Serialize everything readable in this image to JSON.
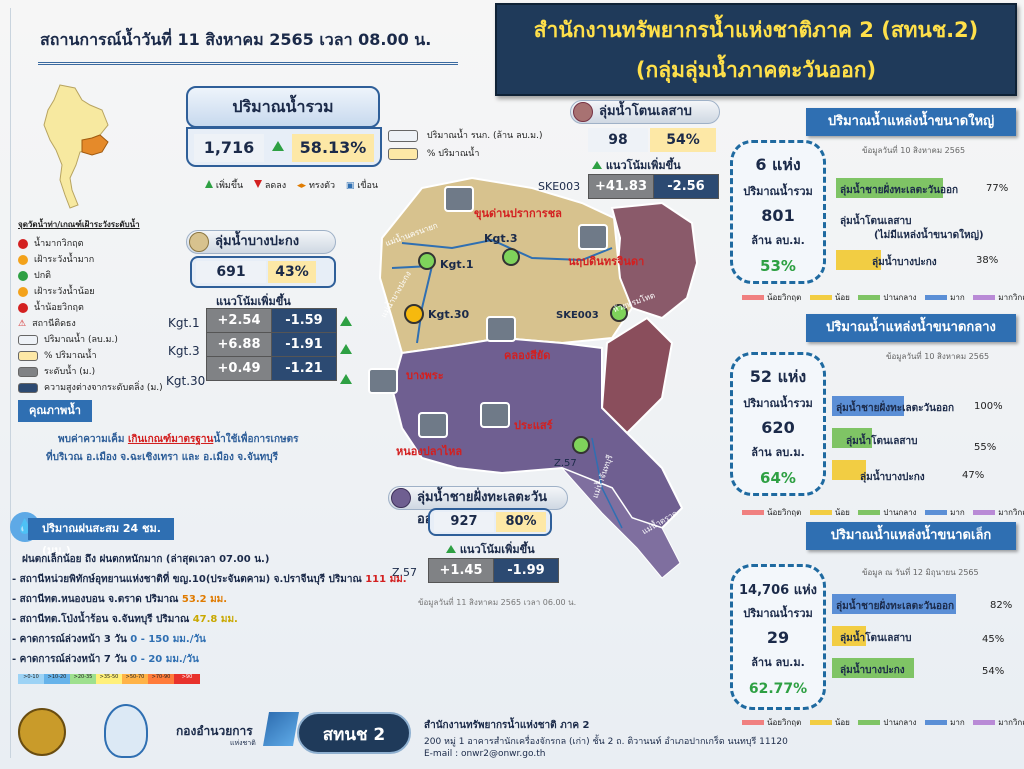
{
  "header": {
    "date_line": "สถานการณ์น้ำวันที่    11 สิงหาคม 2565   เวลา 08.00 น.",
    "title_line1": "สำนักงานทรัพยากรน้ำแห่งชาติภาค 2 (สทนช.2)",
    "title_line2": "(กลุ่มลุ่มน้ำภาคตะวันออก)"
  },
  "total": {
    "label": "ปริมาณน้ำรวม",
    "volume": "1,716",
    "percent": "58.13%",
    "legend_volume": "ปริมาณน้ำ รนก. (ล้าน ลบ.ม.)",
    "legend_percent": "% ปริมาณน้ำ",
    "trend_up": "เพิ่มขึ้น",
    "trend_down": "ลดลง",
    "trend_stable": "ทรงตัว",
    "dam": "เขื่อน"
  },
  "basin_tonlesap": {
    "name": "ลุ่มน้ำโตนเลสาบ",
    "volume": "98",
    "percent": "54%",
    "trend_label": "แนวโน้มเพิ่มขึ้น",
    "station": "SKE003",
    "value_left": "+41.83",
    "value_right": "-2.56"
  },
  "basin_bangpakong": {
    "name": "ลุ่มน้ำบางปะกง",
    "volume": "691",
    "percent": "43%",
    "trend_label": "แนวโน้มเพิ่มขึ้น",
    "rows": [
      {
        "station": "Kgt.1",
        "left": "+2.54",
        "right": "-1.59"
      },
      {
        "station": "Kgt.3",
        "left": "+6.88",
        "right": "-1.91"
      },
      {
        "station": "Kgt.30",
        "left": "+0.49",
        "right": "-1.21"
      }
    ]
  },
  "basin_coast": {
    "name": "ลุ่มน้ำชายฝั่งทะเลตะวันออก",
    "volume": "927",
    "percent": "80%",
    "trend_label": "แนวโน้มเพิ่มขึ้น",
    "station": "Z.57",
    "value_left": "+1.45",
    "value_right": "-1.99",
    "data_date": "ข้อมูลวันที่  11 สิงหาคม 2565 เวลา 06.00 น."
  },
  "map": {
    "labels": {
      "dam1": "ขุนด่านปราการชล",
      "dam2": "นฤบดินทรจินดา",
      "dam3": "คลองสียัด",
      "dam4": "บางพระ",
      "dam5": "หนองปลาไหล",
      "dam6": "ประแสร์",
      "kgt1": "Kgt.1",
      "kgt3": "Kgt.3",
      "kgt30": "Kgt.30",
      "ske003_a": "SKE003",
      "ske003_b": "SKE003",
      "z57": "Z.57",
      "river1": "แม่น้ำนครนายก",
      "river2": "แม่น้ำบางปะกง",
      "river3": "ห้วยพรมโหด",
      "river4": "แม่น้ำจันทบุรี",
      "river5": "แม่น้ำตราด"
    }
  },
  "left_legend": {
    "title": "จุดวัดน้ำท่า/เกณฑ์เฝ้าระวังระดับน้ำ",
    "items": [
      "น้ำมากวิกฤต",
      "เฝ้าระวังน้ำมาก",
      "ปกติ",
      "เฝ้าระวังน้ำน้อย",
      "น้ำน้อยวิกฤต",
      "สถานีติดธง",
      "ปริมาณน้ำ (ลบ.ม.)",
      "% ปริมาณน้ำ",
      "ระดับน้ำ (ม.)",
      "ความสูงต่างจากระดับตลิ่ง (ม.)"
    ],
    "colors": [
      "#d32020",
      "#f3a21b",
      "#2ea043",
      "#f3a21b",
      "#d32020"
    ]
  },
  "quality": {
    "head": "คุณภาพน้ำ",
    "line1_pre": "พบค่าความเค็ม ",
    "line1_red": "เกินเกณฑ์มาตรฐาน",
    "line1_post": "น้ำใช้เพื่อการเกษตร",
    "line2": "ที่บริเวณ อ.เมือง จ.ฉะเชิงเทรา และ อ.เมือง จ.จันทบุรี"
  },
  "rain": {
    "head": "ปริมาณฝนสะสม 24 ชม.(มม.)",
    "summary": "ฝนตกเล็กน้อย ถึง ฝนตกหนักมาก (ล่าสุดเวลา 07.00 น.)",
    "lines": [
      {
        "pre": "- สถานีหน่วยพิทักษ์อุทยานแห่งชาติที่ ขญ.10(ประจันตคาม) จ.ปราจีนบุรี ปริมาณ ",
        "val": "111 มม.",
        "color": "#d32020"
      },
      {
        "pre": "- สถานีทต.หนองบอน จ.ตราด ปริมาณ ",
        "val": "53.2 มม.",
        "color": "#e07b00"
      },
      {
        "pre": "- สถานีทต.โป่งน้ำร้อน จ.จันทบุรี ปริมาณ ",
        "val": "47.8 มม.",
        "color": "#c9a800"
      },
      {
        "pre": "- คาดการณ์ล่วงหน้า 3 วัน  ",
        "val": "0 - 150 มม./วัน",
        "color": "#2f5f99"
      },
      {
        "pre": "- คาดการณ์ล่วงหน้า 7 วัน  ",
        "val": "0 - 20 มม./วัน",
        "color": "#2f5f99"
      }
    ],
    "scale": [
      ">0-10",
      ">10-20",
      ">20-35",
      ">35-50",
      ">50-70",
      ">70-90",
      ">90"
    ],
    "scale_colors": [
      "#9dd3f5",
      "#66b3ea",
      "#9ee08e",
      "#fff07a",
      "#ffb347",
      "#ff7b3a",
      "#e8322c"
    ]
  },
  "large": {
    "head": "ปริมาณน้ำแหล่งน้ำขนาดใหญ่",
    "date": "ข้อมูลวันที่ 10 สิงหาคม 2565",
    "count": "6 แห่ง",
    "vol_label": "ปริมาณน้ำรวม",
    "vol": "801",
    "unit": "ล้าน ลบ.ม.",
    "pct": "53%",
    "bars": [
      {
        "label": "ลุ่มน้ำชายฝั่งทะเลตะวันออก",
        "pct": "77%",
        "fill": 0.77,
        "color": "#7fc465"
      },
      {
        "label": "ลุ่มน้ำโตนเลสาบ",
        "note": "(ไม่มีแหล่งน้ำขนาดใหญ่)",
        "pct": "",
        "fill": 0,
        "color": "#7fc465"
      },
      {
        "label": "ลุ่มน้ำบางปะกง",
        "pct": "38%",
        "fill": 0.38,
        "color": "#f2cd43"
      }
    ]
  },
  "medium": {
    "head": "ปริมาณน้ำแหล่งน้ำขนาดกลาง",
    "date": "ข้อมูลวันที่ 10 สิงหาคม 2565",
    "count": "52 แห่ง",
    "vol_label": "ปริมาณน้ำรวม",
    "vol": "620",
    "unit": "ล้าน ลบ.ม.",
    "pct": "64%",
    "bars": [
      {
        "label": "ลุ่มน้ำชายฝั่งทะเลตะวันออก",
        "pct": "100%",
        "fill": 1.0,
        "color": "#5b8fd6"
      },
      {
        "label": "ลุ่มน้ำโตนเลสาบ",
        "pct": "55%",
        "fill": 0.55,
        "color": "#7fc465"
      },
      {
        "label": "ลุ่มน้ำบางปะกง",
        "pct": "47%",
        "fill": 0.47,
        "color": "#f2cd43"
      }
    ]
  },
  "small": {
    "head": "ปริมาณน้ำแหล่งน้ำขนาดเล็ก",
    "date": "ข้อมูล ณ วันที่ 12 มิถุนายน 2565",
    "count": "14,706 แห่ง",
    "vol_label": "ปริมาณน้ำรวม",
    "vol": "29",
    "unit": "ล้าน ลบ.ม.",
    "pct": "62.77%",
    "bars": [
      {
        "label": "ลุ่มน้ำชายฝั่งทะเลตะวันออก",
        "pct": "82%",
        "fill": 0.82,
        "color": "#5b8fd6"
      },
      {
        "label": "ลุ่มน้ำโตนเลสาบ",
        "pct": "45%",
        "fill": 0.45,
        "color": "#f2cd43"
      },
      {
        "label": "ลุ่มน้ำบางปะกง",
        "pct": "54%",
        "fill": 0.54,
        "color": "#7fc465"
      }
    ]
  },
  "status_legend": {
    "items": [
      "น้อยวิกฤต",
      "น้อย",
      "ปานกลาง",
      "มาก",
      "มากวิกฤต"
    ],
    "colors": [
      "#f08080",
      "#f2cd43",
      "#7fc465",
      "#5b8fd6",
      "#b98ad6"
    ]
  },
  "footer": {
    "org_label": "กองอำนวยการ",
    "org_sub": "แห่งชาติ",
    "badge": "สทนช 2",
    "line1": "สำนักงานทรัพยากรน้ำแห่งชาติ ภาค 2",
    "line2": "200 หมู่ 1 อาคารสำนักเครื่องจักรกล (เก่า) ชั้น 2 ถ. ติวานนท์ อำเภอปากเกร็ด นนทบุรี 11120",
    "line3": "E-mail : onwr2@onwr.go.th"
  }
}
